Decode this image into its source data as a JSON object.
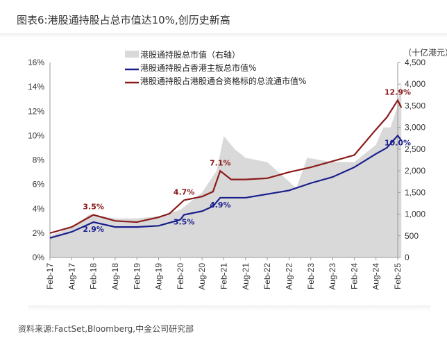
{
  "title": "图表6:港股通持股占总市值达10%,创历史新高",
  "source": "资料来源:FactSet,Bloomberg,中金公司研究部",
  "chart_data": {
    "type": "line",
    "y_left": {
      "ylim": [
        0,
        16
      ],
      "ticks": [
        "0%",
        "2%",
        "4%",
        "6%",
        "8%",
        "10%",
        "12%",
        "14%",
        "16%"
      ]
    },
    "y_right": {
      "unit": "（十亿港元）",
      "ylim": [
        0,
        4500
      ],
      "ticks": [
        "0",
        "500",
        "1,000",
        "1,500",
        "2,000",
        "2,500",
        "3,000",
        "3,500",
        "4,000",
        "4,500"
      ]
    },
    "x_ticks": [
      "Feb-17",
      "Aug-17",
      "Feb-18",
      "Aug-18",
      "Feb-19",
      "Aug-19",
      "Feb-20",
      "Aug-20",
      "Feb-21",
      "Aug-21",
      "Feb-22",
      "Aug-22",
      "Feb-23",
      "Aug-23",
      "Feb-24",
      "Aug-24",
      "Feb-25"
    ],
    "legend_position": "top-left",
    "series": [
      {
        "name": "港股通持股总市值（右轴）",
        "type": "area",
        "axis": "right",
        "color": "#d9d9d9",
        "x": [
          "2017-02",
          "2017-08",
          "2018-01",
          "2018-08",
          "2019-02",
          "2019-08",
          "2020-02",
          "2020-08",
          "2020-12",
          "2021-02",
          "2021-05",
          "2021-08",
          "2022-02",
          "2022-06",
          "2022-10",
          "2023-01",
          "2023-08",
          "2024-02",
          "2024-08",
          "2024-10",
          "2024-12",
          "2025-02",
          "2025-03"
        ],
        "values": [
          500,
          700,
          1000,
          900,
          900,
          950,
          1100,
          1500,
          2000,
          2800,
          2500,
          2300,
          2200,
          1900,
          1600,
          2300,
          2200,
          2200,
          2600,
          3000,
          3000,
          3500,
          4100
        ]
      },
      {
        "name": "港股通持股占香港主板总市值%",
        "type": "line",
        "axis": "left",
        "color": "#1a1f8c",
        "x": [
          "2017-02",
          "2017-08",
          "2018-02",
          "2018-08",
          "2019-02",
          "2019-08",
          "2020-02",
          "2020-03",
          "2020-08",
          "2020-11",
          "2021-01",
          "2021-08",
          "2022-02",
          "2022-08",
          "2023-02",
          "2023-08",
          "2024-02",
          "2024-08",
          "2024-11",
          "2025-02",
          "2025-03"
        ],
        "values": [
          1.6,
          2.1,
          2.9,
          2.5,
          2.5,
          2.6,
          3.1,
          3.5,
          3.8,
          4.2,
          4.9,
          4.9,
          5.2,
          5.5,
          6.1,
          6.6,
          7.4,
          8.5,
          9.0,
          10.0,
          9.6
        ]
      },
      {
        "name": "港股通持股占港股通合资格标的总流通市值%",
        "type": "line",
        "axis": "left",
        "color": "#8b1a1a",
        "x": [
          "2017-02",
          "2017-08",
          "2018-02",
          "2018-08",
          "2019-02",
          "2019-08",
          "2019-11",
          "2020-03",
          "2020-08",
          "2020-11",
          "2021-01",
          "2021-04",
          "2021-08",
          "2022-02",
          "2022-08",
          "2023-02",
          "2023-08",
          "2024-02",
          "2024-08",
          "2024-11",
          "2025-02",
          "2025-03"
        ],
        "values": [
          2.0,
          2.5,
          3.5,
          3.0,
          2.9,
          3.3,
          3.6,
          4.7,
          5.0,
          5.4,
          7.1,
          6.4,
          6.4,
          6.5,
          7.0,
          7.4,
          7.9,
          8.4,
          10.5,
          11.5,
          12.9,
          12.3
        ]
      }
    ],
    "annotations": [
      {
        "text": "3.5%",
        "x": "2018-02",
        "y": 3.5,
        "series": 2
      },
      {
        "text": "2.9%",
        "x": "2018-02",
        "y": 2.9,
        "series": 1
      },
      {
        "text": "4.7%",
        "x": "2020-03",
        "y": 4.7,
        "series": 2
      },
      {
        "text": "3.5%",
        "x": "2020-03",
        "y": 3.5,
        "series": 1
      },
      {
        "text": "7.1%",
        "x": "2021-01",
        "y": 7.1,
        "series": 2
      },
      {
        "text": "4.9%",
        "x": "2021-01",
        "y": 4.9,
        "series": 1
      },
      {
        "text": "12.9%",
        "x": "2025-02",
        "y": 12.9,
        "series": 2
      },
      {
        "text": "10.0%",
        "x": "2025-02",
        "y": 10.0,
        "series": 1
      }
    ]
  }
}
